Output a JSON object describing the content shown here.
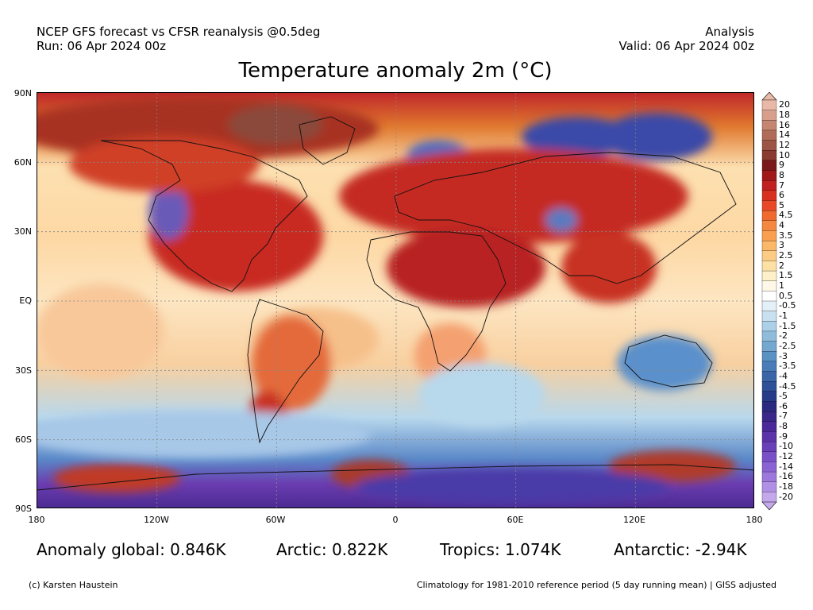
{
  "header": {
    "line1_left": "NCEP GFS forecast vs CFSR reanalysis @0.5deg",
    "line2_left": "Run: 06 Apr 2024 00z",
    "line1_right": "Analysis",
    "line2_right": "Valid: 06 Apr 2024 00z"
  },
  "title": "Temperature anomaly 2m (°C)",
  "axes": {
    "lat_labels": [
      "90N",
      "60N",
      "30N",
      "EQ",
      "30S",
      "60S",
      "90S"
    ],
    "lon_labels": [
      "180",
      "120W",
      "60W",
      "0",
      "60E",
      "120E",
      "180"
    ]
  },
  "colorbar": {
    "ticks": [
      "20",
      "18",
      "16",
      "14",
      "12",
      "10",
      "9",
      "8",
      "7",
      "6",
      "5",
      "4.5",
      "4",
      "3.5",
      "3",
      "2.5",
      "2",
      "1.5",
      "1",
      "0.5",
      "-0.5",
      "-1",
      "-1.5",
      "-2",
      "-2.5",
      "-3",
      "-3.5",
      "-4",
      "-4.5",
      "-5",
      "-6",
      "-7",
      "-8",
      "-9",
      "-10",
      "-12",
      "-14",
      "-16",
      "-18",
      "-20"
    ],
    "colors": [
      "#e8b8a8",
      "#d8a08c",
      "#c48670",
      "#b06c58",
      "#9c5444",
      "#8a3a30",
      "#7a1a1a",
      "#a01818",
      "#c02020",
      "#d83020",
      "#e84a28",
      "#f06a30",
      "#f48840",
      "#f8a050",
      "#fab868",
      "#fccc84",
      "#fde0a4",
      "#fef0c8",
      "#fff8e8",
      "#ffffff",
      "#e4f0f8",
      "#c8e0f0",
      "#acd0e8",
      "#90bcdc",
      "#74a8d0",
      "#5a92c4",
      "#4a7cb8",
      "#3a66a8",
      "#2e5098",
      "#263c88",
      "#2a2a80",
      "#3a2888",
      "#4a2a98",
      "#5a34a8",
      "#6a40b8",
      "#7a50c8",
      "#8a62d4",
      "#9c78dc",
      "#b090e4",
      "#c4a8ec"
    ]
  },
  "stats": {
    "global": "Anomaly global: 0.846K",
    "arctic": "Arctic: 0.822K",
    "tropics": "Tropics: 1.074K",
    "antarctic": "Antarctic: -2.94K"
  },
  "footer": {
    "left": "(c) Karsten Haustein",
    "right": "Climatology for 1981-2010 reference period (5 day running mean) | GISS adjusted"
  }
}
